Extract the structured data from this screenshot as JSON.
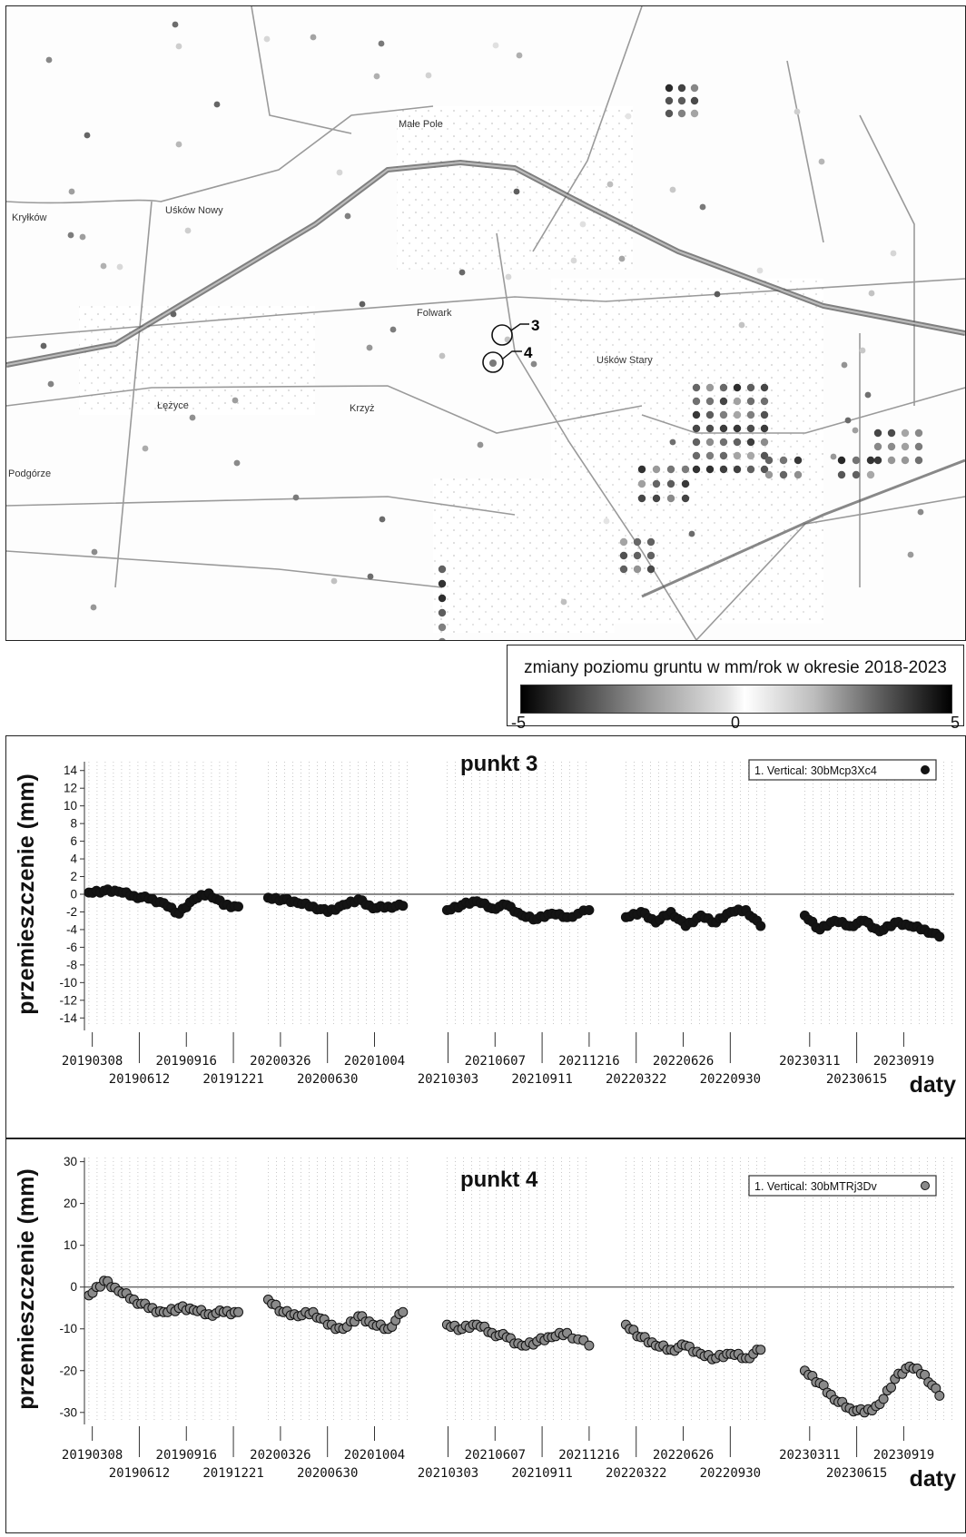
{
  "map": {
    "labels": [
      {
        "id": "wies-1",
        "text": "Kryłków"
      },
      {
        "id": "wies-2",
        "text": "Uśków Nowy"
      },
      {
        "id": "wies-3",
        "text": "Folwark"
      },
      {
        "id": "wies-4",
        "text": "Uśków Stary"
      },
      {
        "id": "wies-5",
        "text": "Łężyce"
      },
      {
        "id": "wies-6",
        "text": "Krzyż"
      },
      {
        "id": "wies-7",
        "text": "Podgórze"
      },
      {
        "id": "wies-8",
        "text": "Małe Pole"
      }
    ],
    "markers": [
      {
        "id": "marker-3",
        "text": "3"
      },
      {
        "id": "marker-4",
        "text": "4"
      }
    ]
  },
  "legend": {
    "title": "zmiany poziomu gruntu w mm/rok w okresie 2018-2023",
    "min_label": "-5",
    "mid_label": "0",
    "max_label": "5"
  },
  "chart_data": [
    {
      "type": "scatter",
      "title": "punkt 3",
      "legend_label": "1. Vertical: 30bMcp3Xc4",
      "ylabel": "przemieszczenie (mm)",
      "xlabel": "daty",
      "ylim": [
        -15,
        15
      ],
      "yticks": [
        14,
        12,
        10,
        8,
        6,
        4,
        2,
        0,
        -2,
        -4,
        -6,
        -8,
        -10,
        -12,
        -14
      ],
      "xtick_upper": [
        "20190308",
        "20190916",
        "20200326",
        "20201004",
        "20210607",
        "20211216",
        "20220626",
        "20230311",
        "20230919"
      ],
      "xtick_lower": [
        "20190612",
        "20191221",
        "20200630",
        "20210303",
        "20210911",
        "20220322",
        "20220930",
        "20230615"
      ],
      "series": [
        {
          "segment": "2019",
          "x": [
            "20190301",
            "20190401",
            "20190501",
            "20190601",
            "20190701",
            "20190801",
            "20190901",
            "20191001",
            "20191101",
            "20191201",
            "20191231"
          ],
          "y": [
            0.2,
            0.4,
            0.3,
            -0.2,
            -0.5,
            -1.0,
            -2.2,
            -0.6,
            0.1,
            -1.2,
            -1.4
          ]
        },
        {
          "segment": "2020",
          "x": [
            "20200301",
            "20200401",
            "20200501",
            "20200601",
            "20200701",
            "20200801",
            "20200901",
            "20201001",
            "20201101",
            "20201201"
          ],
          "y": [
            -0.4,
            -0.6,
            -1.0,
            -1.4,
            -2.0,
            -1.2,
            -0.6,
            -1.6,
            -1.4,
            -1.3
          ]
        },
        {
          "segment": "2021",
          "x": [
            "20210301",
            "20210401",
            "20210501",
            "20210601",
            "20210701",
            "20210801",
            "20210901",
            "20211001",
            "20211101",
            "20211216"
          ],
          "y": [
            -1.8,
            -1.2,
            -0.8,
            -1.6,
            -1.2,
            -2.4,
            -2.8,
            -2.2,
            -2.6,
            -1.8
          ]
        },
        {
          "segment": "2022",
          "x": [
            "20220301",
            "20220401",
            "20220501",
            "20220601",
            "20220701",
            "20220801",
            "20220901",
            "20221001",
            "20221101",
            "20221201"
          ],
          "y": [
            -2.6,
            -2.0,
            -3.2,
            -2.0,
            -3.6,
            -2.4,
            -3.2,
            -2.0,
            -1.8,
            -3.6
          ]
        },
        {
          "segment": "2023",
          "x": [
            "20230301",
            "20230401",
            "20230501",
            "20230601",
            "20230701",
            "20230801",
            "20230901",
            "20231001",
            "20231101",
            "20231201"
          ],
          "y": [
            -2.4,
            -4.0,
            -3.0,
            -3.6,
            -3.0,
            -4.2,
            -3.2,
            -3.6,
            -4.0,
            -4.8
          ]
        }
      ]
    },
    {
      "type": "scatter",
      "title": "punkt 4",
      "legend_label": "1. Vertical: 30bMTRj3Dv",
      "ylabel": "przemieszczenie (mm)",
      "xlabel": "daty",
      "ylim": [
        -32,
        31
      ],
      "yticks": [
        30,
        20,
        10,
        0,
        -10,
        -20,
        -30
      ],
      "xtick_upper": [
        "20190308",
        "20190916",
        "20200326",
        "20201004",
        "20210607",
        "20211216",
        "20220626",
        "20230311",
        "20230919"
      ],
      "xtick_lower": [
        "20190612",
        "20191221",
        "20200630",
        "20210303",
        "20210911",
        "20220322",
        "20220930",
        "20230615"
      ],
      "series": [
        {
          "segment": "2019",
          "x": [
            "20190301",
            "20190401",
            "20190501",
            "20190601",
            "20190701",
            "20190801",
            "20190901",
            "20191001",
            "20191101",
            "20191201",
            "20191231"
          ],
          "y": [
            -2,
            1.5,
            -1,
            -3,
            -5,
            -6,
            -5,
            -5.5,
            -6.5,
            -6,
            -6
          ]
        },
        {
          "segment": "2020",
          "x": [
            "20200301",
            "20200401",
            "20200501",
            "20200601",
            "20200701",
            "20200801",
            "20200901",
            "20201001",
            "20201101",
            "20201201"
          ],
          "y": [
            -3,
            -6,
            -7,
            -6,
            -9,
            -10,
            -7,
            -9,
            -10,
            -6
          ]
        },
        {
          "segment": "2021",
          "x": [
            "20210301",
            "20210401",
            "20210501",
            "20210601",
            "20210701",
            "20210801",
            "20210901",
            "20211001",
            "20211101",
            "20211216"
          ],
          "y": [
            -9,
            -10,
            -9,
            -11,
            -12,
            -14,
            -13,
            -12,
            -11,
            -14
          ]
        },
        {
          "segment": "2022",
          "x": [
            "20220301",
            "20220401",
            "20220501",
            "20220601",
            "20220701",
            "20220801",
            "20220901",
            "20221001",
            "20221101",
            "20221201"
          ],
          "y": [
            -9,
            -12,
            -14,
            -15,
            -14,
            -16,
            -17,
            -16,
            -17,
            -15
          ]
        },
        {
          "segment": "2023",
          "x": [
            "20230301",
            "20230401",
            "20230501",
            "20230601",
            "20230701",
            "20230801",
            "20230901",
            "20231001",
            "20231101",
            "20231201"
          ],
          "y": [
            -20,
            -23,
            -27,
            -29,
            -30,
            -28,
            -22,
            -19,
            -21,
            -26
          ]
        }
      ]
    }
  ]
}
